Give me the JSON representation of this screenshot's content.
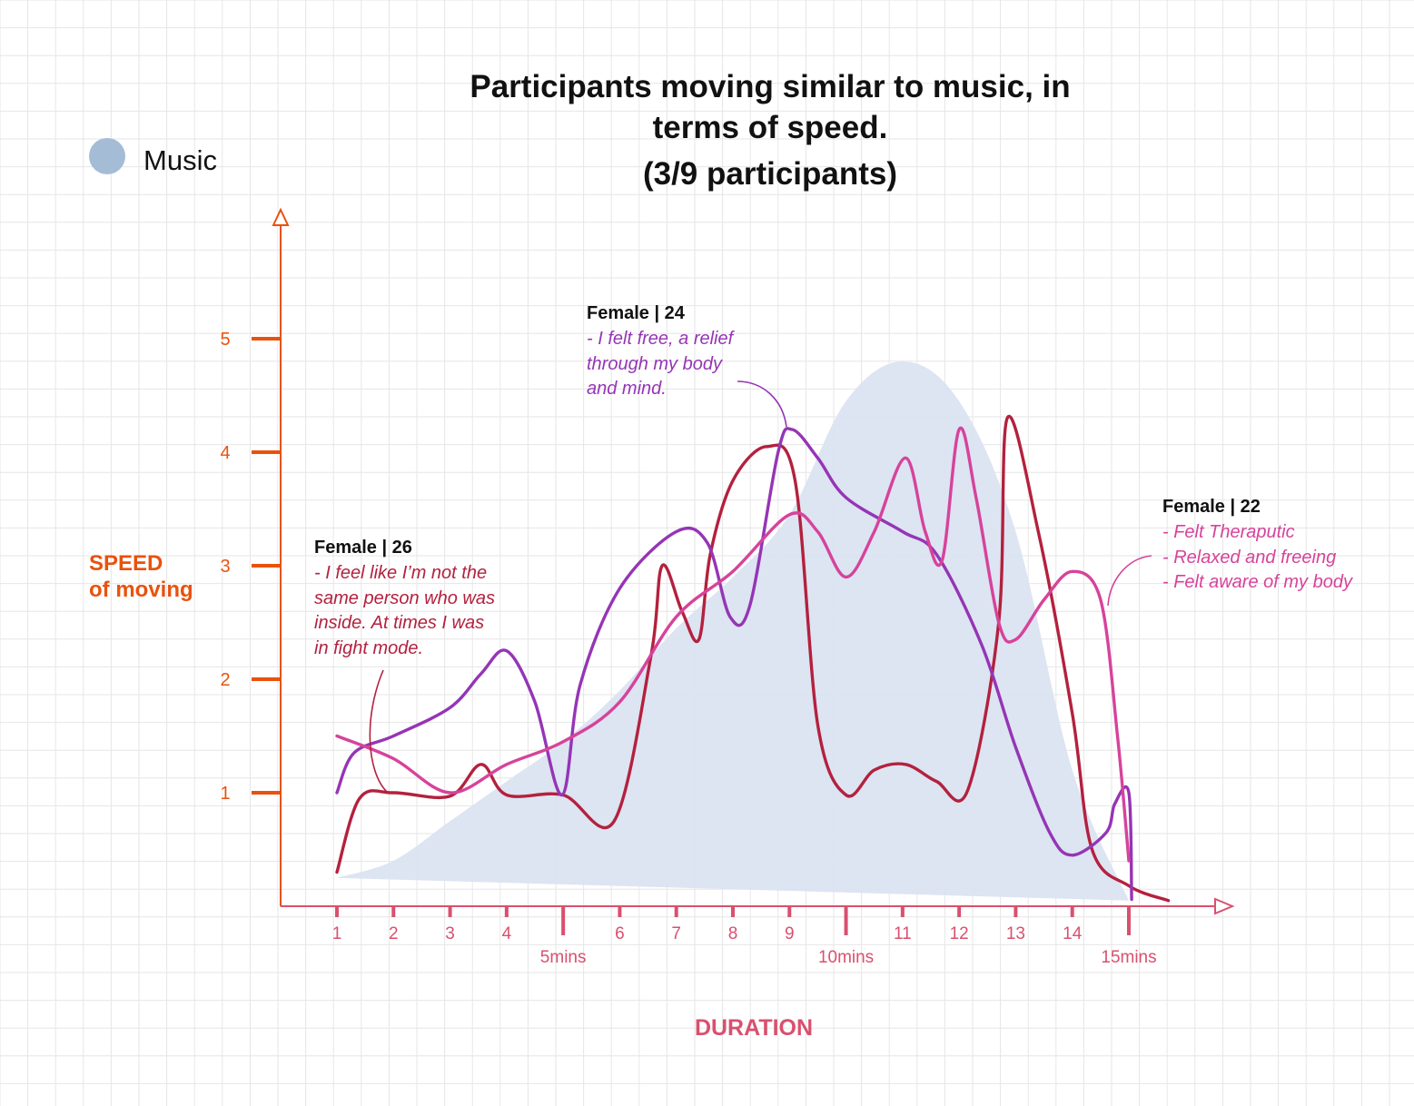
{
  "chart_data": {
    "type": "line",
    "title_lines": [
      "Participants moving similar to music, in",
      "terms of speed."
    ],
    "subtitle": "(3/9 participants)",
    "xlabel": "DURATION",
    "ylabel_lines": [
      "SPEED",
      "of moving"
    ],
    "x_ticks": [
      1,
      2,
      3,
      4,
      5,
      6,
      7,
      8,
      9,
      10,
      11,
      12,
      13,
      14,
      15
    ],
    "x_tick_labels": [
      "1",
      "2",
      "3",
      "4",
      "",
      "6",
      "7",
      "8",
      "9",
      "",
      "11",
      "12",
      "13",
      "14",
      ""
    ],
    "x_major_labels": [
      {
        "x": 5,
        "label": "5mins"
      },
      {
        "x": 10,
        "label": "10mins"
      },
      {
        "x": 15,
        "label": "15mins"
      }
    ],
    "y_ticks": [
      1,
      2,
      3,
      4,
      5
    ],
    "y_tick_labels": [
      "1",
      "2",
      "3",
      "4",
      "5"
    ],
    "xlim": [
      0,
      16.8
    ],
    "ylim": [
      0,
      6
    ],
    "grid": true,
    "legend": {
      "position": "top-left",
      "entries": [
        {
          "name": "Music",
          "color": "#a4bcd6"
        }
      ]
    },
    "area": {
      "name": "Music",
      "color": "#dbe3f1",
      "upper": [
        [
          1,
          0.25
        ],
        [
          2,
          0.4
        ],
        [
          3,
          0.75
        ],
        [
          4,
          1.1
        ],
        [
          5,
          1.45
        ],
        [
          6,
          1.9
        ],
        [
          7,
          2.45
        ],
        [
          8,
          2.9
        ],
        [
          9,
          3.45
        ],
        [
          10,
          4.45
        ],
        [
          11,
          4.8
        ],
        [
          12,
          4.45
        ],
        [
          13,
          3.3
        ],
        [
          14,
          1.2
        ],
        [
          15,
          0.05
        ]
      ],
      "lower": [
        [
          15,
          0.05
        ],
        [
          1,
          0.25
        ]
      ]
    },
    "series": [
      {
        "name": "Female | 26",
        "color": "#b3213e",
        "points": [
          [
            1,
            0.3
          ],
          [
            1.4,
            0.95
          ],
          [
            2,
            1.0
          ],
          [
            3,
            0.97
          ],
          [
            3.55,
            1.25
          ],
          [
            4,
            0.98
          ],
          [
            5,
            0.98
          ],
          [
            5.9,
            0.75
          ],
          [
            6.55,
            2.2
          ],
          [
            6.75,
            3.0
          ],
          [
            7.1,
            2.6
          ],
          [
            7.4,
            2.35
          ],
          [
            7.6,
            3.1
          ],
          [
            8,
            3.75
          ],
          [
            8.6,
            4.05
          ],
          [
            9.1,
            3.75
          ],
          [
            9.5,
            1.6
          ],
          [
            10,
            0.98
          ],
          [
            10.5,
            1.2
          ],
          [
            11.05,
            1.25
          ],
          [
            11.6,
            1.1
          ],
          [
            12.15,
            1.02
          ],
          [
            12.7,
            2.5
          ],
          [
            12.85,
            4.3
          ],
          [
            13.4,
            3.3
          ],
          [
            14,
            1.7
          ],
          [
            14.35,
            0.5
          ],
          [
            15,
            0.18
          ],
          [
            15.7,
            0.05
          ]
        ]
      },
      {
        "name": "Female | 24",
        "color": "#9535b5",
        "points": [
          [
            1,
            1.0
          ],
          [
            1.3,
            1.35
          ],
          [
            2,
            1.5
          ],
          [
            3,
            1.75
          ],
          [
            3.55,
            2.05
          ],
          [
            4,
            2.25
          ],
          [
            4.5,
            1.8
          ],
          [
            4.98,
            0.98
          ],
          [
            5.3,
            1.95
          ],
          [
            6,
            2.8
          ],
          [
            7,
            3.3
          ],
          [
            7.55,
            3.2
          ],
          [
            7.95,
            2.55
          ],
          [
            8.3,
            2.65
          ],
          [
            8.8,
            4.0
          ],
          [
            9.05,
            4.2
          ],
          [
            9.5,
            3.95
          ],
          [
            10,
            3.6
          ],
          [
            11,
            3.3
          ],
          [
            11.6,
            3.1
          ],
          [
            12.4,
            2.3
          ],
          [
            13,
            1.4
          ],
          [
            13.6,
            0.65
          ],
          [
            14,
            0.45
          ],
          [
            14.6,
            0.65
          ],
          [
            14.75,
            0.9
          ],
          [
            15,
            1.0
          ],
          [
            15.05,
            0.06
          ]
        ]
      },
      {
        "name": "Female | 22",
        "color": "#d6439b",
        "points": [
          [
            1,
            1.5
          ],
          [
            2,
            1.3
          ],
          [
            3,
            1.0
          ],
          [
            4,
            1.25
          ],
          [
            5,
            1.45
          ],
          [
            6,
            1.8
          ],
          [
            7,
            2.55
          ],
          [
            8,
            2.95
          ],
          [
            9,
            3.45
          ],
          [
            9.5,
            3.3
          ],
          [
            10,
            2.9
          ],
          [
            10.5,
            3.3
          ],
          [
            11.05,
            3.95
          ],
          [
            11.4,
            3.3
          ],
          [
            11.7,
            3.05
          ],
          [
            12,
            4.2
          ],
          [
            12.3,
            3.6
          ],
          [
            12.7,
            2.5
          ],
          [
            13,
            2.35
          ],
          [
            13.5,
            2.7
          ],
          [
            14,
            2.95
          ],
          [
            14.5,
            2.7
          ],
          [
            14.8,
            1.5
          ],
          [
            15,
            0.4
          ]
        ]
      }
    ]
  },
  "notes": [
    {
      "id": "female-26",
      "title": "Female | 26",
      "color": "#b3213e",
      "lines": [
        "- I feel like I’m not the",
        "same person who was",
        "inside. At times I was",
        "in fight mode."
      ]
    },
    {
      "id": "female-24",
      "title": "Female | 24",
      "color": "#9535b5",
      "lines": [
        "- I felt free, a relief",
        "through my body",
        "and mind."
      ]
    },
    {
      "id": "female-22",
      "title": "Female | 22",
      "color": "#d6439b",
      "lines": [
        "- Felt Theraputic",
        "- Relaxed and freeing",
        "- Felt aware of my body"
      ]
    }
  ],
  "colors": {
    "y_axis": "#e8520e",
    "x_axis": "#d9506e",
    "grid": "#e6e6e6",
    "legend_music": "#a4bcd6"
  }
}
